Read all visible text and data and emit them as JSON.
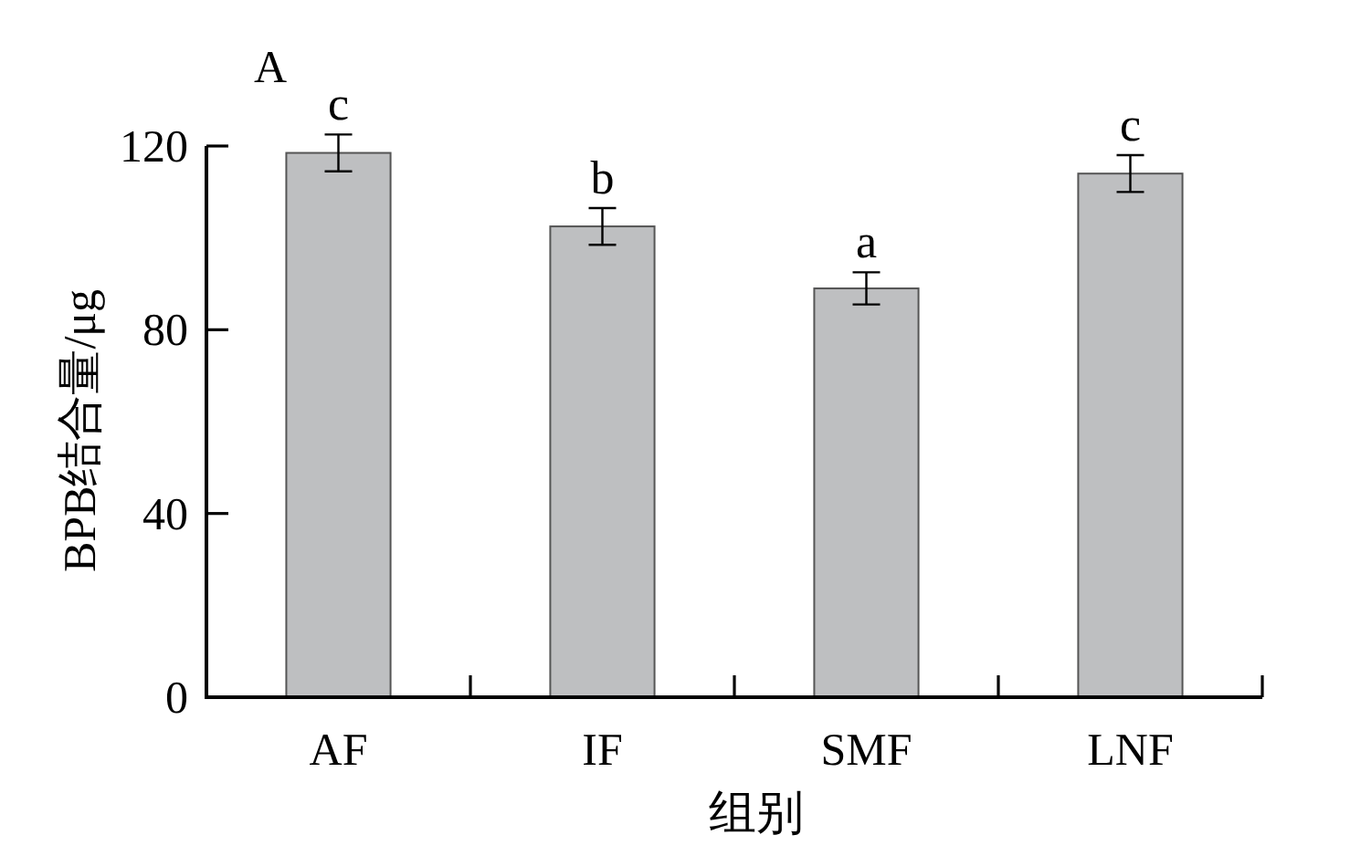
{
  "chart_data": {
    "type": "bar",
    "title": "A",
    "xlabel": "组别",
    "ylabel": "BPB结合量/μg",
    "categories": [
      "AF",
      "IF",
      "SMF",
      "LNF"
    ],
    "values": [
      118.5,
      102.5,
      89,
      114
    ],
    "errors": [
      4,
      4,
      3.5,
      4
    ],
    "color": "#bebfc1",
    "ylim": [
      0,
      120
    ],
    "yticks": [
      0,
      40,
      80,
      120
    ],
    "annotations": [
      {
        "text": "c",
        "x": "AF",
        "y": 122.5
      },
      {
        "text": "b",
        "x": "IF",
        "y": 106.5
      },
      {
        "text": "a",
        "x": "SMF",
        "y": 92.5
      },
      {
        "text": "c",
        "x": "LNF",
        "y": 118
      }
    ]
  }
}
